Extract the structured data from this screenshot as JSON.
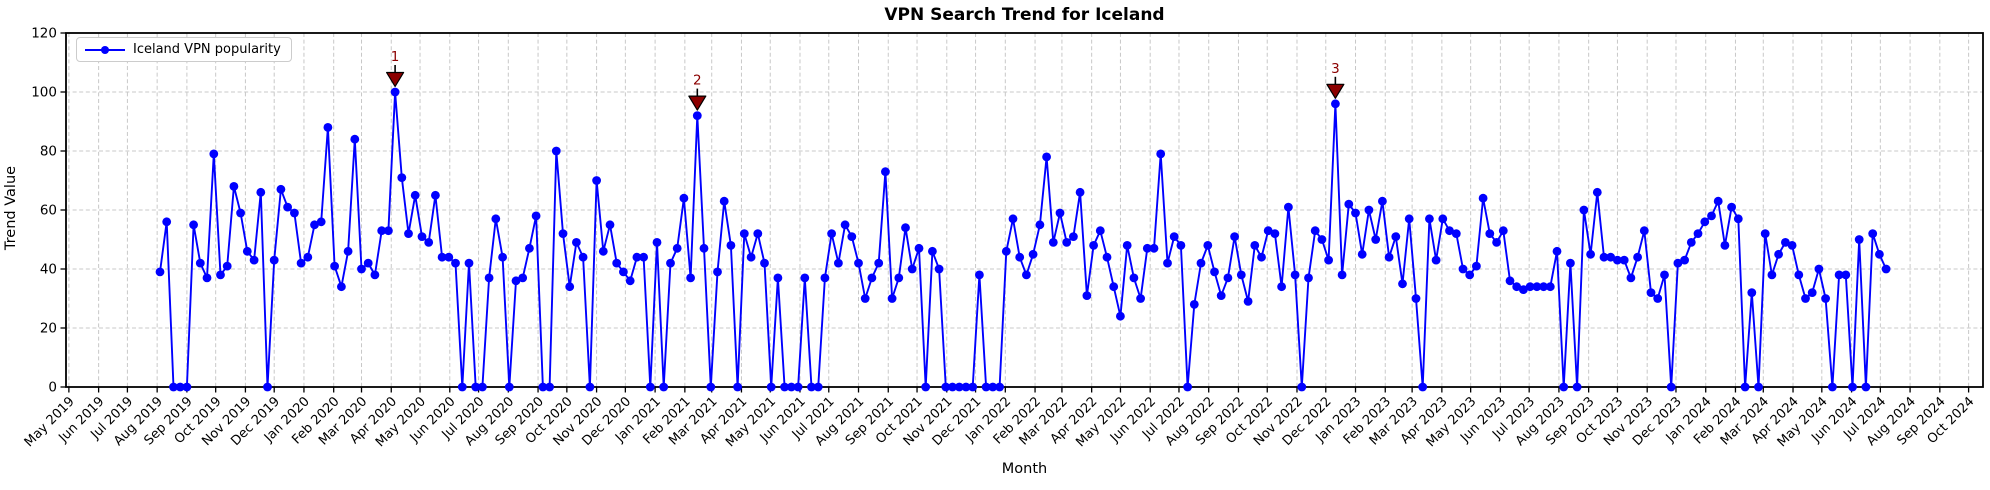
{
  "title": "VPN Search Trend for Iceland",
  "legend": {
    "label": "Iceland VPN popularity",
    "position": "upper-left"
  },
  "axes": {
    "xlabel": "Month",
    "ylabel": "Trend Value",
    "ylim": [
      0,
      120
    ],
    "yticks": [
      0,
      20,
      40,
      60,
      80,
      100,
      120
    ],
    "grid": true,
    "x_tick_rotation": 45
  },
  "colors": {
    "line": "#0000ff",
    "marker": "#0000ff",
    "annotation_fill": "#8b0000",
    "annotation_text": "#8b0000",
    "annotation_edge": "#000000",
    "grid": "#c8c8c8",
    "spine": "#000000",
    "background": "#ffffff"
  },
  "chart_data": {
    "type": "line",
    "title": "VPN Search Trend for Iceland",
    "xlabel": "Month",
    "ylabel": "Trend Value",
    "ylim": [
      0,
      120
    ],
    "legend_position": "upper left",
    "grid": true,
    "x_axis_range": [
      "2019-04-28",
      "2024-10-16"
    ],
    "x_tick_labels": [
      "May 2019",
      "Jun 2019",
      "Jul 2019",
      "Aug 2019",
      "Sep 2019",
      "Oct 2019",
      "Nov 2019",
      "Dec 2019",
      "Jan 2020",
      "Feb 2020",
      "Mar 2020",
      "Apr 2020",
      "May 2020",
      "Jun 2020",
      "Jul 2020",
      "Aug 2020",
      "Sep 2020",
      "Oct 2020",
      "Nov 2020",
      "Dec 2020",
      "Jan 2021",
      "Feb 2021",
      "Mar 2021",
      "Apr 2021",
      "May 2021",
      "Jun 2021",
      "Jul 2021",
      "Aug 2021",
      "Sep 2021",
      "Oct 2021",
      "Nov 2021",
      "Dec 2021",
      "Jan 2022",
      "Feb 2022",
      "Mar 2022",
      "Apr 2022",
      "May 2022",
      "Jun 2022",
      "Jul 2022",
      "Aug 2022",
      "Sep 2022",
      "Oct 2022",
      "Nov 2022",
      "Dec 2022",
      "Jan 2023",
      "Feb 2023",
      "Mar 2023",
      "Apr 2023",
      "May 2023",
      "Jun 2023",
      "Jul 2023",
      "Aug 2023",
      "Sep 2023",
      "Oct 2023",
      "Nov 2023",
      "Dec 2023",
      "Jan 2024",
      "Feb 2024",
      "Mar 2024",
      "Apr 2024",
      "May 2024",
      "Jun 2024",
      "Jul 2024",
      "Aug 2024",
      "Sep 2024",
      "Oct 2024"
    ],
    "series": [
      {
        "name": "Iceland VPN popularity",
        "color": "#0000ff",
        "start_date": "2019-08-04",
        "interval_days": 7,
        "values": [
          39,
          56,
          0,
          0,
          0,
          55,
          42,
          37,
          79,
          38,
          41,
          68,
          59,
          46,
          43,
          66,
          0,
          43,
          67,
          61,
          59,
          42,
          44,
          55,
          56,
          88,
          41,
          34,
          46,
          84,
          40,
          42,
          38,
          53,
          53,
          100,
          71,
          52,
          65,
          51,
          49,
          65,
          44,
          44,
          42,
          0,
          42,
          0,
          0,
          37,
          57,
          44,
          0,
          36,
          37,
          47,
          58,
          0,
          0,
          80,
          52,
          34,
          49,
          44,
          0,
          70,
          46,
          55,
          42,
          39,
          36,
          44,
          44,
          0,
          49,
          0,
          42,
          47,
          64,
          37,
          92,
          47,
          0,
          39,
          63,
          48,
          0,
          52,
          44,
          52,
          42,
          0,
          37,
          0,
          0,
          0,
          37,
          0,
          0,
          37,
          52,
          42,
          55,
          51,
          42,
          30,
          37,
          42,
          73,
          30,
          37,
          54,
          40,
          47,
          0,
          46,
          40,
          0,
          0,
          0,
          0,
          0,
          38,
          0,
          0,
          0,
          46,
          57,
          44,
          38,
          45,
          55,
          78,
          49,
          59,
          49,
          51,
          66,
          31,
          48,
          53,
          44,
          34,
          24,
          48,
          37,
          30,
          47,
          47,
          79,
          42,
          51,
          48,
          0,
          28,
          42,
          48,
          39,
          31,
          37,
          51,
          38,
          29,
          48,
          44,
          53,
          52,
          34,
          61,
          38,
          0,
          37,
          53,
          50,
          43,
          96,
          38,
          62,
          59,
          45,
          60,
          50,
          63,
          44,
          51,
          35,
          57,
          30,
          0,
          57,
          43,
          57,
          53,
          52,
          40,
          38,
          41,
          64,
          52,
          49,
          53,
          36,
          34,
          33,
          34,
          34,
          34,
          34,
          46,
          0,
          42,
          0,
          60,
          45,
          66,
          44,
          44,
          43,
          43,
          37,
          44,
          53,
          32,
          30,
          38,
          0,
          42,
          43,
          49,
          52,
          56,
          58,
          63,
          48,
          61,
          57,
          0,
          32,
          0,
          52,
          38,
          45,
          49,
          48,
          38,
          30,
          32,
          40,
          30,
          0,
          38,
          38,
          0,
          50,
          0,
          52,
          45,
          40
        ]
      }
    ],
    "annotations": [
      {
        "label": "1",
        "week_index": 35,
        "date": "2020-04-05",
        "value": 100
      },
      {
        "label": "2",
        "week_index": 80,
        "date": "2021-02-14",
        "value": 92
      },
      {
        "label": "3",
        "week_index": 175,
        "date": "2022-12-11",
        "value": 96
      }
    ]
  }
}
